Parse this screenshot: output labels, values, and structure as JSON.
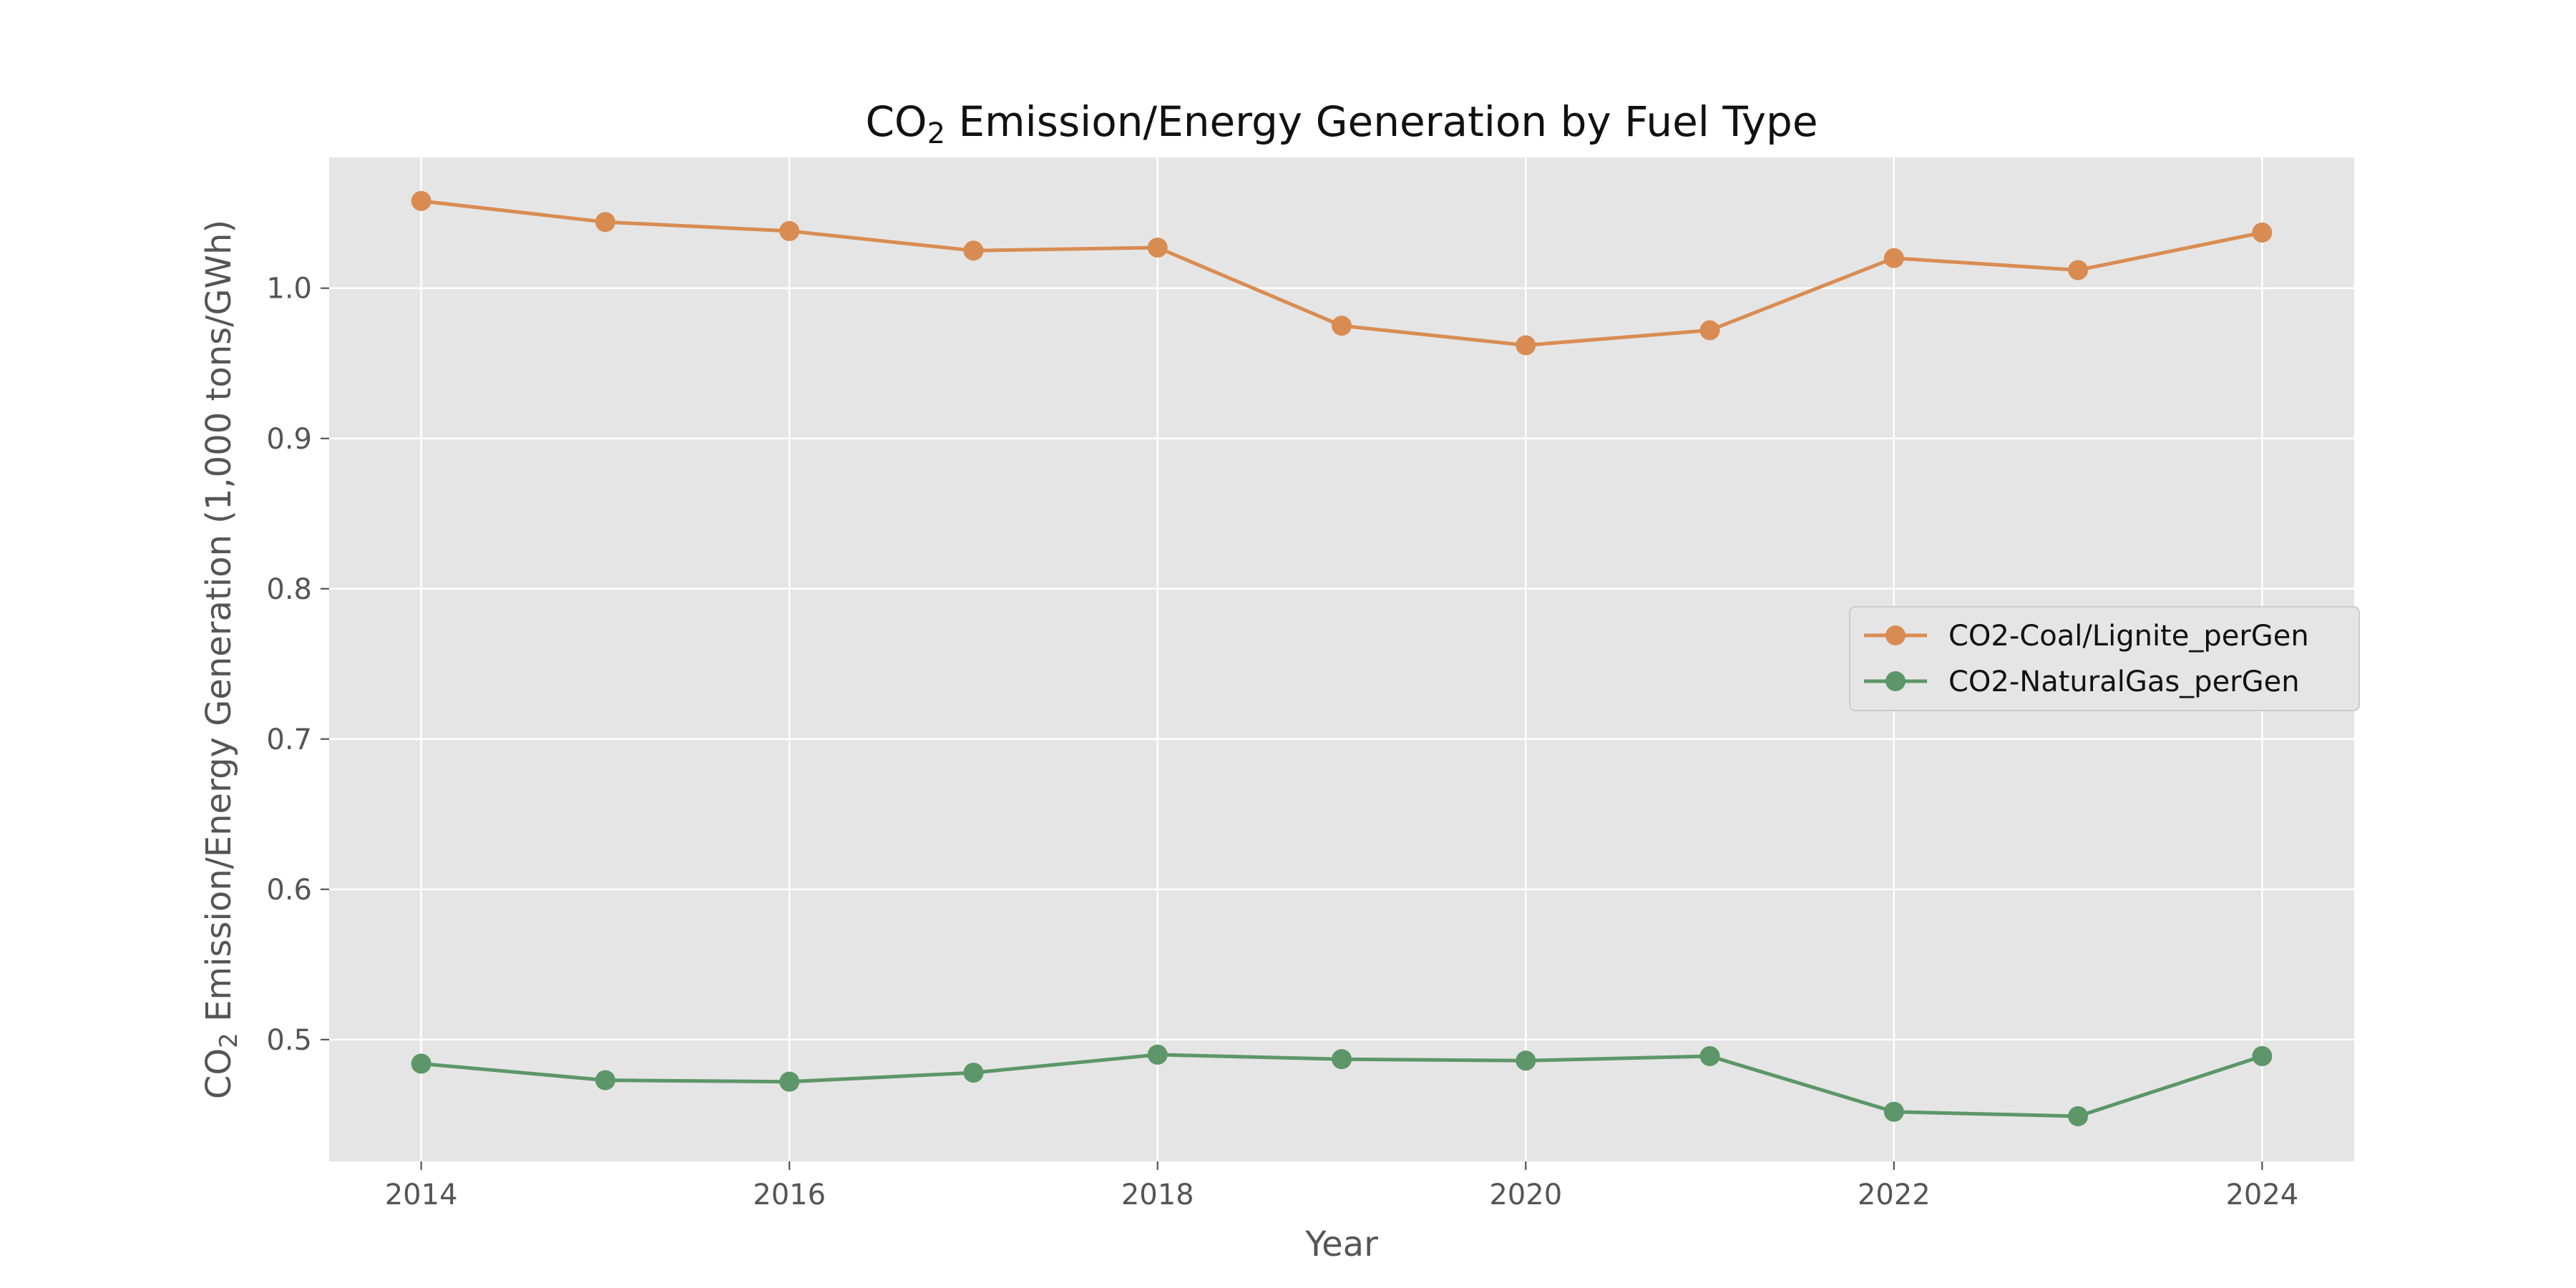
{
  "chart_data": {
    "type": "line",
    "title": "CO2 Emission/Energy Generation by Fuel Type",
    "title_parts": {
      "main": "CO",
      "subscript": "2",
      "rest": " Emission/Energy Generation by Fuel Type"
    },
    "xlabel": "Year",
    "ylabel": "CO2 Emission/Energy Generation (1,000 tons/GWh)",
    "ylabel_parts": {
      "main": "CO",
      "subscript": "2",
      "rest": " Emission/Energy Generation (1,000 tons/GWh)"
    },
    "x": [
      2014,
      2015,
      2016,
      2017,
      2018,
      2019,
      2020,
      2021,
      2022,
      2023,
      2024
    ],
    "xlim": [
      2013.5,
      2024.5
    ],
    "ylim": [
      0.419,
      1.087
    ],
    "x_ticks": [
      2014,
      2016,
      2018,
      2020,
      2022,
      2024
    ],
    "x_tick_labels": [
      "2014",
      "2016",
      "2018",
      "2020",
      "2022",
      "2024"
    ],
    "y_ticks": [
      0.5,
      0.6,
      0.7,
      0.8,
      0.9,
      1.0
    ],
    "y_tick_labels": [
      "0.5",
      "0.6",
      "0.7",
      "0.8",
      "0.9",
      "1.0"
    ],
    "grid": true,
    "legend_position": "center-right",
    "series": [
      {
        "name": "CO2-Coal/Lignite_perGen",
        "color": "#d98c52",
        "values": [
          1.058,
          1.044,
          1.038,
          1.025,
          1.027,
          0.975,
          0.962,
          0.972,
          1.02,
          1.012,
          1.037
        ]
      },
      {
        "name": "CO2-NaturalGas_perGen",
        "color": "#5c9669",
        "values": [
          0.484,
          0.473,
          0.472,
          0.478,
          0.49,
          0.487,
          0.486,
          0.489,
          0.452,
          0.449,
          0.489
        ]
      }
    ]
  }
}
